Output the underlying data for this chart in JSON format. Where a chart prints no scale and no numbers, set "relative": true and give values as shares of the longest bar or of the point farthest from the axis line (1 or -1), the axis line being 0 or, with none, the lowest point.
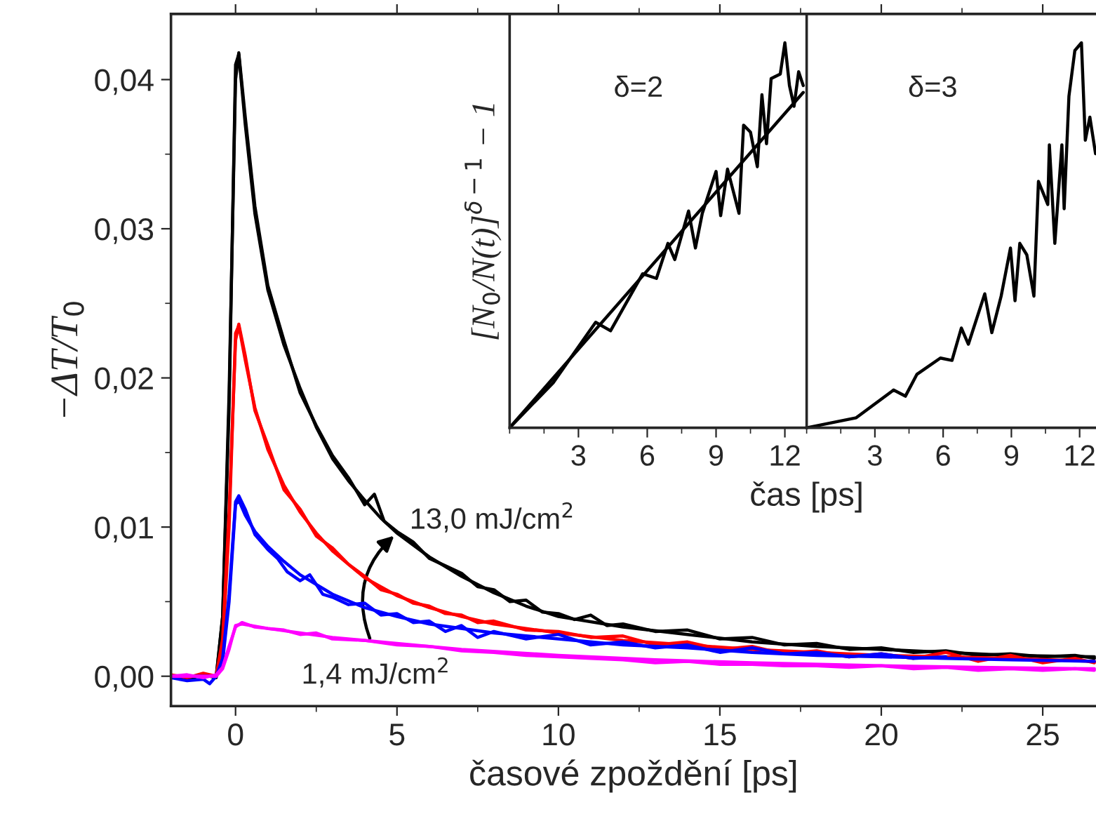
{
  "chart_data": [
    {
      "type": "line",
      "xlabel": "časové zpoždění [ps]",
      "ylabel": "−ΔT/T$_{0}$",
      "xlim": [
        -2,
        26.65
      ],
      "ylim": [
        -0.002,
        0.0444
      ],
      "xticks": [
        0,
        5,
        10,
        15,
        20,
        25
      ],
      "yticks": [
        {
          "value": 0,
          "label": "0,00"
        },
        {
          "value": 0.01,
          "label": "0,01"
        },
        {
          "value": 0.02,
          "label": "0,02"
        },
        {
          "value": 0.03,
          "label": "0,03"
        },
        {
          "value": 0.04,
          "label": "0,04"
        }
      ],
      "grid": false,
      "legend": false,
      "annotations": [
        {
          "text": "13,0 mJ/cm$^{2}$",
          "x": 5,
          "y": 0.0096
        },
        {
          "text": "1,4 mJ/cm$^{2}$",
          "x": 4.2,
          "y": 0.0023
        }
      ],
      "series": [
        {
          "color": "#000000",
          "x": [
            -2,
            -1.5,
            -1,
            -0.6,
            -0.4,
            -0.2,
            0,
            0.1,
            0.3,
            0.6,
            1,
            1.5,
            2,
            2.5,
            3,
            3.5,
            4,
            4.3,
            4.6,
            5,
            5.5,
            6,
            6.5,
            7,
            7.5,
            8,
            8.5,
            9,
            9.5,
            10,
            10.5,
            11,
            11.5,
            12,
            13,
            14,
            15,
            16,
            17,
            18,
            19,
            20,
            21,
            22,
            23,
            24,
            25,
            26,
            26.6
          ],
          "values": [
            0.0,
            -0.0002,
            0.0001,
            -0.0001,
            0.004,
            0.019,
            0.04,
            0.0418,
            0.0375,
            0.0315,
            0.0262,
            0.0225,
            0.019,
            0.0168,
            0.0148,
            0.0133,
            0.0115,
            0.0122,
            0.0104,
            0.0097,
            0.009,
            0.0079,
            0.0074,
            0.0069,
            0.006,
            0.0058,
            0.005,
            0.0051,
            0.0043,
            0.0042,
            0.0038,
            0.0041,
            0.0034,
            0.0035,
            0.003,
            0.0031,
            0.0025,
            0.0026,
            0.0021,
            0.0022,
            0.0018,
            0.0019,
            0.0016,
            0.0017,
            0.0014,
            0.0015,
            0.0013,
            0.0014,
            0.0012
          ]
        },
        {
          "color": "#000000",
          "x": [
            -2,
            -1,
            -0.6,
            -0.4,
            -0.2,
            0,
            0.1,
            0.3,
            0.6,
            1,
            1.5,
            2,
            2.5,
            3,
            3.5,
            4,
            4.5,
            5,
            6,
            7,
            8,
            9,
            10,
            12,
            14,
            16,
            18,
            20,
            22,
            24,
            26.6
          ],
          "values": [
            0,
            0,
            0,
            0.004,
            0.018,
            0.041,
            0.0417,
            0.037,
            0.031,
            0.0259,
            0.0222,
            0.0193,
            0.0167,
            0.0146,
            0.0131,
            0.0118,
            0.0106,
            0.0096,
            0.008,
            0.0067,
            0.0056,
            0.0047,
            0.004,
            0.0033,
            0.0028,
            0.0023,
            0.002,
            0.0018,
            0.0016,
            0.0014,
            0.0013
          ]
        },
        {
          "color": "#ff0000",
          "x": [
            -2,
            -1.5,
            -1,
            -0.6,
            -0.4,
            -0.2,
            0,
            0.1,
            0.3,
            0.6,
            1,
            1.5,
            2,
            2.5,
            3,
            3.5,
            4,
            4.5,
            5,
            5.5,
            6,
            6.5,
            7,
            7.5,
            8,
            9,
            10,
            11,
            12,
            13,
            14,
            15,
            16,
            17,
            18,
            19,
            20,
            21,
            22,
            23,
            24,
            25,
            26,
            26.6
          ],
          "values": [
            0.0001,
            -0.0001,
            0.0002,
            0.0,
            0.0025,
            0.011,
            0.0225,
            0.0236,
            0.0215,
            0.0178,
            0.0155,
            0.0125,
            0.0112,
            0.0094,
            0.0086,
            0.0075,
            0.0067,
            0.0058,
            0.0055,
            0.0049,
            0.0047,
            0.0042,
            0.0041,
            0.0036,
            0.0037,
            0.0031,
            0.003,
            0.0026,
            0.0027,
            0.0021,
            0.0023,
            0.0018,
            0.002,
            0.0015,
            0.0017,
            0.0013,
            0.0015,
            0.0012,
            0.0016,
            0.001,
            0.0014,
            0.0009,
            0.0012,
            0.0009
          ]
        },
        {
          "color": "#ff0000",
          "x": [
            -2,
            -0.6,
            -0.4,
            -0.2,
            0,
            0.1,
            0.3,
            0.6,
            1,
            1.5,
            2,
            2.5,
            3,
            4,
            5,
            6,
            7,
            8,
            10,
            12,
            14,
            16,
            18,
            20,
            22,
            24,
            26.6
          ],
          "values": [
            0,
            0,
            0.002,
            0.01,
            0.023,
            0.0235,
            0.0212,
            0.018,
            0.0152,
            0.0128,
            0.011,
            0.0096,
            0.0084,
            0.0066,
            0.0054,
            0.0046,
            0.004,
            0.0035,
            0.0029,
            0.0024,
            0.0021,
            0.0018,
            0.0016,
            0.0014,
            0.0013,
            0.0012,
            0.001
          ]
        },
        {
          "color": "#0000ff",
          "x": [
            -2,
            -1.5,
            -1,
            -0.8,
            -0.6,
            -0.4,
            -0.2,
            0,
            0.1,
            0.3,
            0.6,
            1,
            1.3,
            1.6,
            2,
            2.3,
            2.7,
            3,
            3.5,
            4,
            4.5,
            5,
            5.5,
            6,
            6.5,
            7,
            7.5,
            8,
            9,
            10,
            11,
            12,
            13,
            14,
            15,
            16,
            17,
            18,
            19,
            20,
            21,
            22
          ],
          "values": [
            -0.0001,
            -0.0003,
            -0.0002,
            -0.0005,
            0.0,
            0.0012,
            0.0055,
            0.0117,
            0.0121,
            0.0112,
            0.0095,
            0.0085,
            0.0079,
            0.007,
            0.0064,
            0.0068,
            0.0055,
            0.0053,
            0.0048,
            0.0049,
            0.0041,
            0.0042,
            0.0036,
            0.0037,
            0.003,
            0.0034,
            0.0026,
            0.003,
            0.0025,
            0.0028,
            0.0021,
            0.0023,
            0.0019,
            0.0021,
            0.0016,
            0.0019,
            0.0015,
            0.0016,
            0.0013,
            0.0015,
            0.0012,
            0.0013
          ]
        },
        {
          "color": "#0000ff",
          "x": [
            -2,
            -0.6,
            -0.4,
            -0.2,
            0,
            0.1,
            0.3,
            0.6,
            1,
            1.5,
            2,
            3,
            4,
            5,
            6,
            8,
            10,
            12,
            14,
            16,
            18,
            20,
            22,
            24,
            26.6
          ],
          "values": [
            0,
            0,
            0.001,
            0.005,
            0.0115,
            0.0118,
            0.0108,
            0.0097,
            0.0087,
            0.0077,
            0.0068,
            0.0055,
            0.0046,
            0.004,
            0.0035,
            0.0029,
            0.0025,
            0.0021,
            0.0019,
            0.0016,
            0.0014,
            0.0013,
            0.0012,
            0.0011,
            0.001
          ]
        },
        {
          "color": "#ff00ff",
          "x": [
            -2,
            -1.5,
            -1,
            -0.6,
            -0.4,
            -0.2,
            0,
            0.2,
            0.6,
            1,
            1.5,
            2,
            2.5,
            3,
            4,
            5,
            6,
            7,
            8,
            9,
            10,
            11,
            12,
            13,
            14,
            15,
            16,
            17,
            18,
            19,
            20,
            21,
            22,
            23,
            24,
            25,
            26,
            26.6
          ],
          "values": [
            0.0,
            0.0001,
            -0.0001,
            0.0001,
            0.0006,
            0.002,
            0.0033,
            0.0036,
            0.0033,
            0.0032,
            0.0031,
            0.0028,
            0.0029,
            0.0025,
            0.0024,
            0.0021,
            0.002,
            0.0017,
            0.0016,
            0.0014,
            0.0013,
            0.0012,
            0.0011,
            0.0009,
            0.001,
            0.0008,
            0.0008,
            0.0007,
            0.0007,
            0.0006,
            0.0007,
            0.0005,
            0.0006,
            0.0004,
            0.0005,
            0.0004,
            0.0005,
            0.0004
          ]
        },
        {
          "color": "#ff00ff",
          "x": [
            -2,
            -0.6,
            -0.4,
            -0.2,
            0,
            0.2,
            1,
            2,
            3,
            5,
            7,
            10,
            13,
            16,
            20,
            23,
            26.6
          ],
          "values": [
            0,
            0,
            0.0005,
            0.0018,
            0.0034,
            0.0035,
            0.0032,
            0.0029,
            0.0026,
            0.0022,
            0.0018,
            0.0014,
            0.0011,
            0.0009,
            0.0007,
            0.0006,
            0.0005
          ]
        }
      ]
    },
    {
      "type": "line",
      "relative": true,
      "xlabel": "čas [ps]",
      "ylabel": "[N$_{0}$/N(t)]$^{δ−1}$ − 1",
      "xlim": [
        0,
        12.95
      ],
      "xticks": [
        3,
        6,
        9,
        12
      ],
      "tick_labels": "x",
      "grid": false,
      "annotations": [
        "δ=2"
      ],
      "series": [
        {
          "color": "#000000",
          "x": [
            0,
            1.9,
            3.75,
            4.4,
            5.8,
            6.4,
            6.9,
            7.2,
            7.8,
            8.1,
            8.4,
            9.0,
            9.2,
            9.5,
            10.0,
            10.2,
            10.5,
            10.8,
            11.0,
            11.2,
            11.4,
            11.8,
            12.0,
            12.2,
            12.4,
            12.6,
            12.8
          ],
          "values": [
            0,
            0.117,
            0.274,
            0.252,
            0.4,
            0.388,
            0.479,
            0.437,
            0.563,
            0.467,
            0.557,
            0.666,
            0.551,
            0.672,
            0.557,
            0.786,
            0.768,
            0.678,
            0.865,
            0.738,
            0.907,
            0.919,
            1.0,
            0.889,
            0.835,
            0.925,
            0.889
          ]
        },
        {
          "color": "#000000",
          "x": [
            0,
            12.8
          ],
          "values": [
            0,
            0.871
          ]
        }
      ]
    },
    {
      "type": "line",
      "relative": true,
      "xlim": [
        0,
        12.72
      ],
      "xticks": [
        3,
        6,
        9,
        12
      ],
      "tick_labels": "x",
      "grid": false,
      "annotations": [
        "δ=3"
      ],
      "series": [
        {
          "color": "#000000",
          "x": [
            0,
            2.18,
            3.82,
            4.34,
            4.85,
            5.88,
            6.39,
            6.8,
            7.11,
            7.83,
            8.14,
            8.55,
            8.96,
            9.16,
            9.37,
            9.68,
            9.99,
            10.19,
            10.6,
            10.67,
            10.91,
            11.22,
            11.32,
            11.53,
            11.79,
            12.08,
            12.25,
            12.45,
            12.7
          ],
          "values": [
            0,
            0.026,
            0.098,
            0.082,
            0.139,
            0.181,
            0.175,
            0.259,
            0.217,
            0.348,
            0.247,
            0.342,
            0.467,
            0.33,
            0.479,
            0.449,
            0.342,
            0.64,
            0.58,
            0.735,
            0.479,
            0.735,
            0.569,
            0.861,
            0.98,
            1.0,
            0.747,
            0.807,
            0.712
          ]
        }
      ]
    }
  ]
}
